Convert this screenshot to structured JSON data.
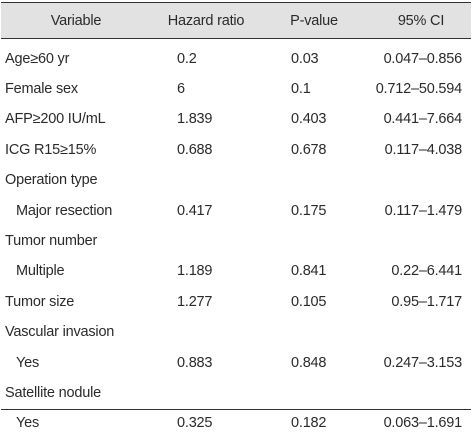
{
  "table": {
    "headers": [
      "Variable",
      "Hazard ratio",
      "P-value",
      "95% CI"
    ],
    "rows": [
      {
        "variable": "Age≥60 yr",
        "hr": "0.2",
        "p": "0.03",
        "ci": "0.047–0.856",
        "indent": false
      },
      {
        "variable": "Female sex",
        "hr": "6",
        "p": "0.1",
        "ci": "0.712–50.594",
        "indent": false
      },
      {
        "variable": "AFP≥200 IU/mL",
        "hr": "1.839",
        "p": "0.403",
        "ci": "0.441–7.664",
        "indent": false
      },
      {
        "variable": "ICG R15≥15%",
        "hr": "0.688",
        "p": "0.678",
        "ci": "0.117–4.038",
        "indent": false
      },
      {
        "variable": "Operation type",
        "hr": "",
        "p": "",
        "ci": "",
        "indent": false
      },
      {
        "variable": "Major resection",
        "hr": "0.417",
        "p": "0.175",
        "ci": "0.117–1.479",
        "indent": true
      },
      {
        "variable": "Tumor number",
        "hr": "",
        "p": "",
        "ci": "",
        "indent": false
      },
      {
        "variable": "Multiple",
        "hr": "1.189",
        "p": "0.841",
        "ci": "0.22–6.441",
        "indent": true
      },
      {
        "variable": "Tumor size",
        "hr": "1.277",
        "p": "0.105",
        "ci": "0.95–1.717",
        "indent": false
      },
      {
        "variable": "Vascular invasion",
        "hr": "",
        "p": "",
        "ci": "",
        "indent": false
      },
      {
        "variable": "Yes",
        "hr": "0.883",
        "p": "0.848",
        "ci": "0.247–3.153",
        "indent": true
      },
      {
        "variable": "Satellite nodule",
        "hr": "",
        "p": "",
        "ci": "",
        "indent": false
      },
      {
        "variable": "Yes",
        "hr": "0.325",
        "p": "0.182",
        "ci": "0.063–1.691",
        "indent": true
      }
    ]
  }
}
